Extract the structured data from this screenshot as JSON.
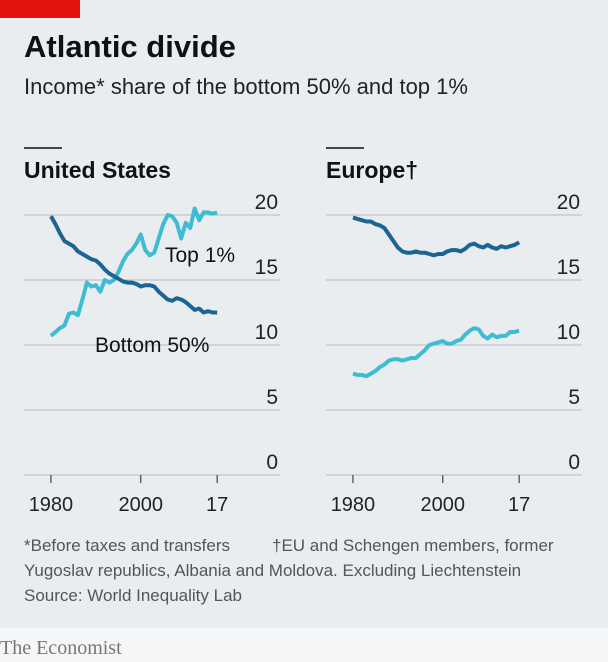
{
  "title": "Atlantic divide",
  "subtitle": "Income* share of the bottom 50% and top 1%",
  "notes": [
    "*Before taxes and transfers",
    "†EU and Schengen members, former",
    "Yugoslav republics, Albania and Moldova. Excluding Liechtenstein"
  ],
  "source": "Source: World Inequality Lab",
  "brand": "The Economist",
  "chart_data": [
    {
      "type": "line",
      "title": "United States",
      "x": [
        1980,
        1981,
        1982,
        1983,
        1984,
        1985,
        1986,
        1987,
        1988,
        1989,
        1990,
        1991,
        1992,
        1993,
        1994,
        1995,
        1996,
        1997,
        1998,
        1999,
        2000,
        2001,
        2002,
        2003,
        2004,
        2005,
        2006,
        2007,
        2008,
        2009,
        2010,
        2011,
        2012,
        2013,
        2014,
        2015,
        2016,
        2017
      ],
      "series": [
        {
          "name": "Top 1%",
          "color": "#3ebcd2",
          "values": [
            10.7,
            11.0,
            11.3,
            11.5,
            12.4,
            12.5,
            12.3,
            13.5,
            14.8,
            14.5,
            14.6,
            14.1,
            15.0,
            14.8,
            15.0,
            15.6,
            16.4,
            17.0,
            17.3,
            17.8,
            18.5,
            17.3,
            16.9,
            17.1,
            18.2,
            19.3,
            20.0,
            19.9,
            19.4,
            18.2,
            19.4,
            19.0,
            20.5,
            19.6,
            20.2,
            20.2,
            20.1,
            20.2
          ]
        },
        {
          "name": "Bottom 50%",
          "color": "#1b6494",
          "values": [
            19.9,
            19.3,
            18.6,
            18.0,
            17.8,
            17.6,
            17.2,
            17.0,
            16.8,
            16.6,
            16.5,
            16.2,
            15.8,
            15.5,
            15.3,
            15.1,
            14.9,
            14.8,
            14.8,
            14.7,
            14.5,
            14.6,
            14.6,
            14.5,
            14.1,
            13.8,
            13.5,
            13.4,
            13.6,
            13.5,
            13.3,
            13.0,
            12.7,
            12.8,
            12.5,
            12.6,
            12.5,
            12.5
          ]
        }
      ],
      "xlim": [
        1974,
        2031
      ],
      "xticks": [
        1980,
        2000,
        {
          "value": 2017,
          "label": "17"
        }
      ],
      "ylim": [
        0,
        20
      ],
      "yticks": [
        0,
        5,
        10,
        15,
        20
      ],
      "grid": true
    },
    {
      "type": "line",
      "title": "Europe†",
      "x": [
        1980,
        1981,
        1982,
        1983,
        1984,
        1985,
        1986,
        1987,
        1988,
        1989,
        1990,
        1991,
        1992,
        1993,
        1994,
        1995,
        1996,
        1997,
        1998,
        1999,
        2000,
        2001,
        2002,
        2003,
        2004,
        2005,
        2006,
        2007,
        2008,
        2009,
        2010,
        2011,
        2012,
        2013,
        2014,
        2015,
        2016,
        2017
      ],
      "series": [
        {
          "color": "#3ebcd2",
          "values": [
            7.8,
            7.7,
            7.7,
            7.6,
            7.8,
            8.0,
            8.3,
            8.5,
            8.8,
            8.9,
            8.9,
            8.8,
            8.9,
            9.0,
            9.0,
            9.3,
            9.6,
            10.0,
            10.1,
            10.2,
            10.3,
            10.1,
            10.1,
            10.3,
            10.4,
            10.8,
            11.1,
            11.3,
            11.2,
            10.7,
            10.5,
            10.8,
            10.6,
            10.7,
            10.7,
            11.0,
            11.0,
            11.1
          ]
        },
        {
          "color": "#1b6494",
          "values": [
            19.8,
            19.7,
            19.6,
            19.5,
            19.5,
            19.3,
            19.2,
            19.0,
            18.5,
            18.0,
            17.5,
            17.2,
            17.1,
            17.1,
            17.2,
            17.1,
            17.1,
            17.0,
            16.9,
            17.0,
            17.0,
            17.2,
            17.3,
            17.3,
            17.2,
            17.4,
            17.7,
            17.8,
            17.6,
            17.5,
            17.7,
            17.5,
            17.4,
            17.6,
            17.5,
            17.6,
            17.7,
            17.9
          ]
        }
      ],
      "xlim": [
        1974,
        2031
      ],
      "xticks": [
        1980,
        2000,
        {
          "value": 2017,
          "label": "17"
        }
      ],
      "ylim": [
        0,
        20
      ],
      "yticks": [
        0,
        5,
        10,
        15,
        20
      ],
      "grid": true
    }
  ]
}
